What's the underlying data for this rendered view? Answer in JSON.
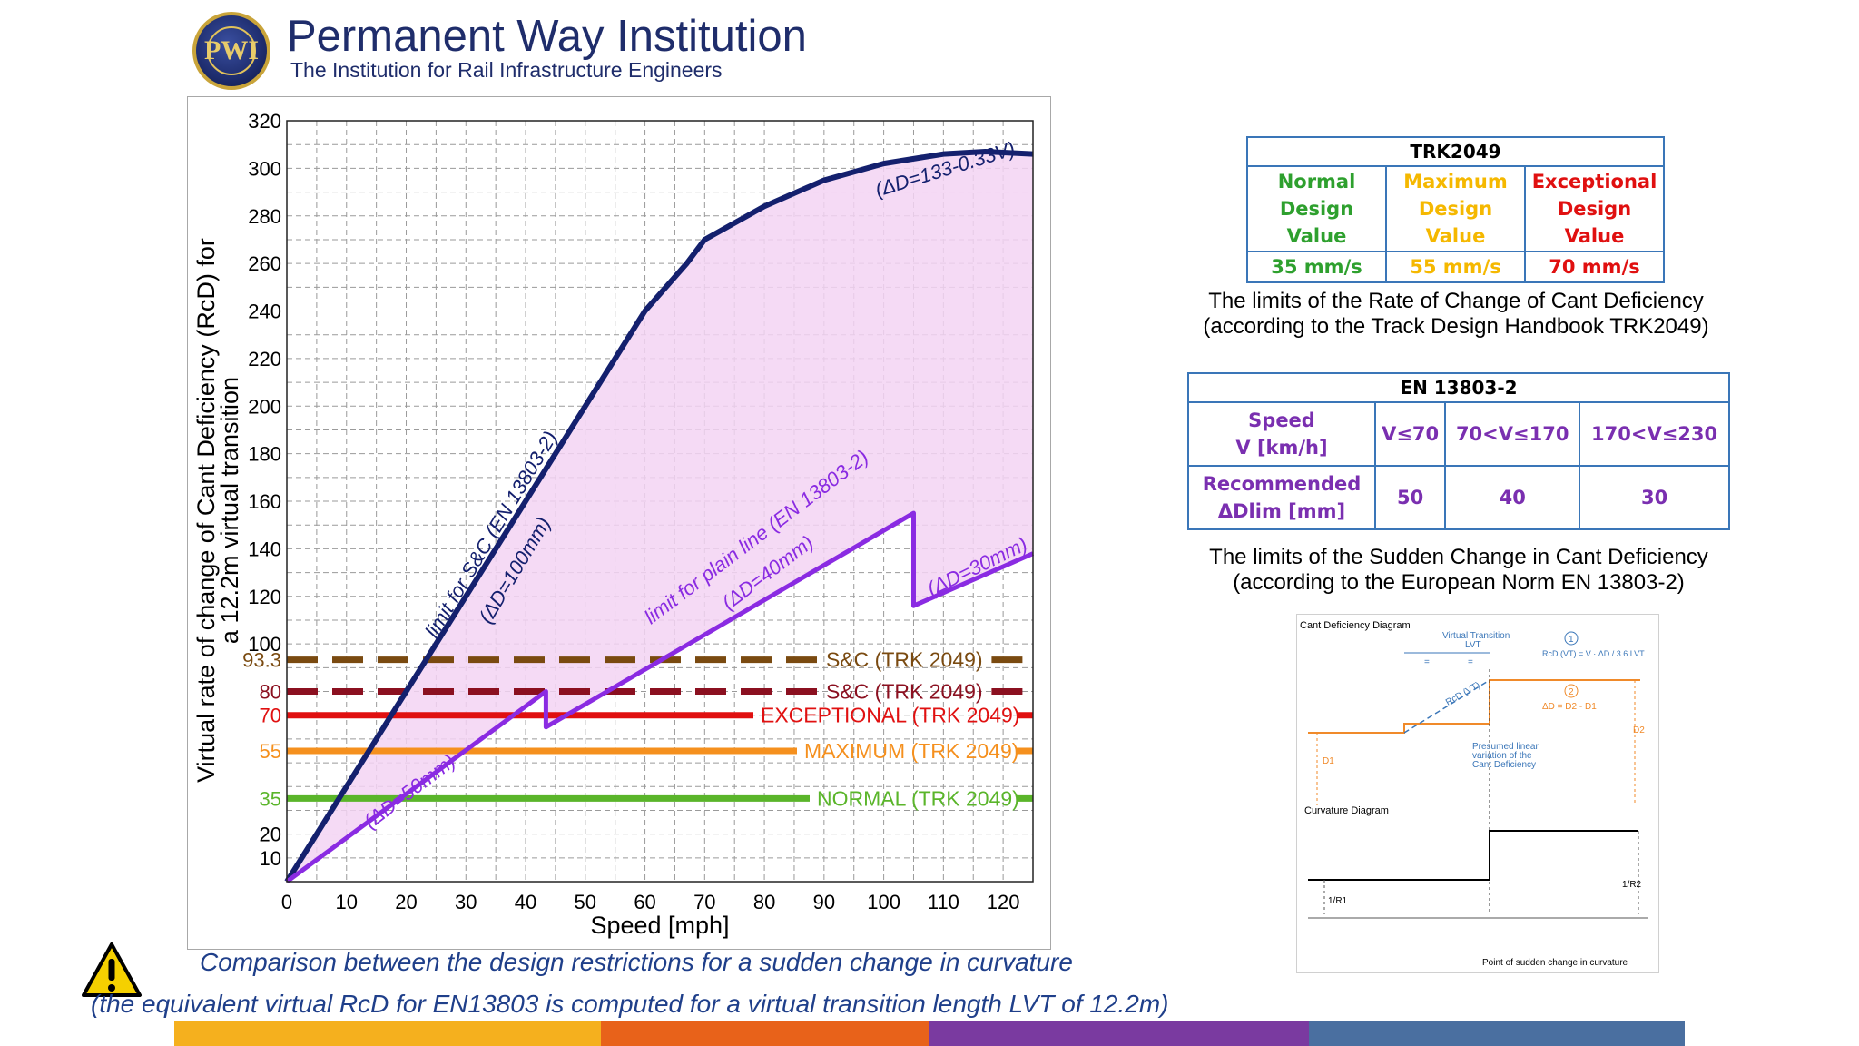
{
  "header": {
    "title": "Permanent Way Institution",
    "subtitle": "The Institution for Rail Infrastructure Engineers",
    "logo_text": "PWI"
  },
  "chart_data": {
    "type": "line",
    "xlabel": "Speed [mph]",
    "ylabel_line1": "Virtual rate of change of Cant Deficiency (RcD) for",
    "ylabel_line2": "a 12.2m virtual transition",
    "xlim": [
      0,
      125
    ],
    "ylim": [
      0,
      320
    ],
    "xticks": [
      0,
      10,
      20,
      30,
      40,
      50,
      60,
      70,
      80,
      90,
      100,
      110,
      120
    ],
    "yticks": [
      10,
      20,
      35,
      55,
      70,
      80,
      93.3,
      100,
      120,
      140,
      160,
      180,
      200,
      220,
      240,
      260,
      280,
      300,
      320
    ],
    "ytick_labels": [
      "10",
      "20",
      "35",
      "55",
      "70",
      "80",
      "93.3",
      "100",
      "120",
      "140",
      "160",
      "180",
      "200",
      "220",
      "240",
      "260",
      "280",
      "300",
      "320"
    ],
    "grid": true,
    "series": [
      {
        "id": "sc-limit",
        "color": "#14206e",
        "x": [
          0,
          10,
          20,
          30,
          40,
          50,
          60,
          67,
          70,
          80,
          90,
          100,
          110,
          117,
          125
        ],
        "y": [
          0,
          40,
          80,
          120,
          160,
          200,
          240,
          260,
          270,
          284,
          295,
          302,
          306,
          307,
          306
        ]
      },
      {
        "id": "plain-limit",
        "color": "#8a2be2",
        "x": [
          0,
          43.4,
          43.4,
          105.0,
          105.0,
          125
        ],
        "y": [
          0,
          80,
          65,
          155,
          116,
          138
        ]
      }
    ],
    "limit_lines": [
      {
        "y": 93.3,
        "label": "S&C (TRK 2049)",
        "color": "#7a4a10",
        "style": "dashed",
        "label_color": "#7a4a10"
      },
      {
        "y": 80,
        "label": "S&C (TRK 2049)",
        "color": "#8b1020",
        "style": "dashed",
        "label_color": "#8b1020"
      },
      {
        "y": 70,
        "label": "EXCEPTIONAL (TRK 2049)",
        "color": "#e01010",
        "style": "solid",
        "label_color": "#e01010"
      },
      {
        "y": 55,
        "label": "MAXIMUM (TRK 2049)",
        "color": "#f5901e",
        "style": "solid",
        "label_color": "#f5901e"
      },
      {
        "y": 35,
        "label": "NORMAL (TRK 2049)",
        "color": "#5ab52a",
        "style": "solid",
        "label_color": "#5ab52a"
      }
    ],
    "annotations": [
      {
        "text": "(ΔD=133-0.33V)",
        "color": "#14206e"
      },
      {
        "text": "limit for S&C (EN 13803-2)",
        "color": "#14206e"
      },
      {
        "text": "(ΔD=100mm)",
        "color": "#14206e"
      },
      {
        "text": "limit for plain line (EN 13803-2)",
        "color": "#8a2be2"
      },
      {
        "text": "(ΔD=40mm)",
        "color": "#8a2be2"
      },
      {
        "text": "(ΔD=30mm)",
        "color": "#8a2be2"
      },
      {
        "text": "(ΔD=50mm)",
        "color": "#8a2be2"
      }
    ]
  },
  "trk_table": {
    "title": "TRK2049",
    "headers": [
      {
        "lines": [
          "Normal",
          "Design",
          "Value"
        ],
        "color": "#2ea02e"
      },
      {
        "lines": [
          "Maximum",
          "Design",
          "Value"
        ],
        "color": "#f5b800"
      },
      {
        "lines": [
          "Exceptional",
          "Design",
          "Value"
        ],
        "color": "#e01010"
      }
    ],
    "values": [
      {
        "text": "35 mm/s",
        "color": "#2ea02e"
      },
      {
        "text": "55 mm/s",
        "color": "#f5b800"
      },
      {
        "text": "70 mm/s",
        "color": "#e01010"
      }
    ],
    "caption_line1": "The limits of the Rate of Change of Cant Deficiency",
    "caption_line2": "(according to the Track Design Handbook TRK2049)"
  },
  "en_table": {
    "title": "EN 13803-2",
    "row1_label_line1": "Speed",
    "row1_label_line2": "V [km/h]",
    "row1": [
      "V≤70",
      "70<V≤170",
      "170<V≤230"
    ],
    "row2_label_line1": "Recommended",
    "row2_label_line2": "ΔDlim [mm]",
    "row2": [
      "50",
      "40",
      "30"
    ],
    "label_color": "#7a2fb0",
    "caption_line1": "The limits of the Sudden Change in Cant Deficiency",
    "caption_line2": "(according to the European Norm EN 13803-2)"
  },
  "diagram": {
    "title1": "Cant Deficiency Diagram",
    "vt_label1": "Virtual Transition",
    "vt_label2": "LVT",
    "eq": "=",
    "circle1": "1",
    "rcd_formula": "RcD (VT) = V · ΔD / 3.6 LVT",
    "circle2": "2",
    "delta_formula": "ΔD = D2 - D1",
    "rcd_label": "RcD (VT)",
    "d1": "D1",
    "d2": "D2",
    "presumed1": "Presumed linear",
    "presumed2": "variation of the",
    "presumed3": "Cant Deficiency",
    "title2": "Curvature Diagram",
    "r1": "1/R1",
    "r2": "1/R2",
    "point_label": "Point of sudden change in curvature"
  },
  "footer": {
    "line1": "Comparison between the design restrictions for a sudden change in curvature",
    "line2": "(the equivalent virtual RcD for EN13803 is computed for a virtual transition length LVT of 12.2m)",
    "stripe_colors": [
      "#f5b01e",
      "#e8621a",
      "#7a3aa0",
      "#4a6fa0"
    ]
  }
}
